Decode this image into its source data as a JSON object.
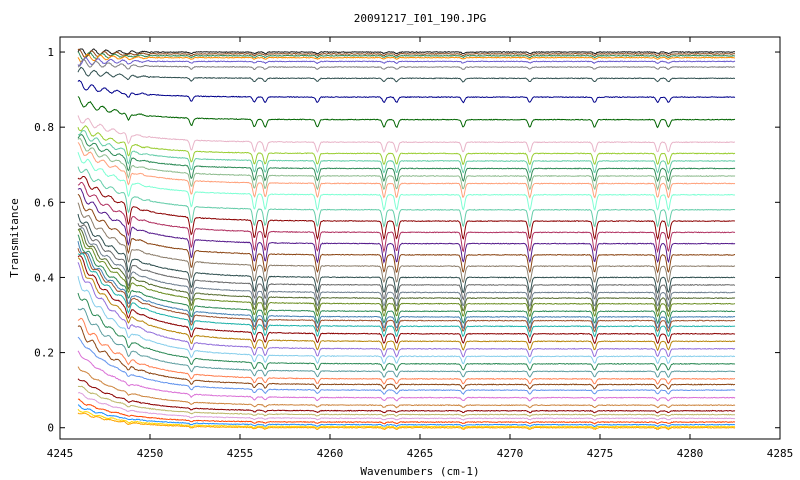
{
  "chart_data": {
    "type": "line",
    "title": "20091217_I01_190.JPG",
    "xlabel": "Wavenumbers (cm-1)",
    "ylabel": "Transmitance",
    "xlim": [
      4245,
      4285
    ],
    "ylim": [
      -0.03,
      1.04
    ],
    "data_x_range": [
      4246,
      4282.5
    ],
    "xticks": [
      4245,
      4250,
      4255,
      4260,
      4265,
      4270,
      4275,
      4280,
      4285
    ],
    "yticks": [
      0,
      0.2,
      0.4,
      0.6,
      0.8,
      1
    ],
    "ytick_labels": [
      "0",
      "0.2",
      "0.4",
      "0.6",
      "0.8",
      "1"
    ],
    "grid": false,
    "legend": "none",
    "absorption_lines_cm1": [
      4248.8,
      4252.3,
      4255.8,
      4256.4,
      4259.3,
      4263.0,
      4263.7,
      4267.4,
      4271.1,
      4274.7,
      4278.2,
      4278.8
    ],
    "series_baselines_at_4282": [
      1.0,
      0.995,
      0.99,
      0.985,
      0.975,
      0.96,
      0.93,
      0.88,
      0.82,
      0.76,
      0.73,
      0.71,
      0.69,
      0.67,
      0.65,
      0.62,
      0.58,
      0.55,
      0.52,
      0.49,
      0.46,
      0.43,
      0.4,
      0.38,
      0.36,
      0.345,
      0.33,
      0.31,
      0.295,
      0.285,
      0.27,
      0.25,
      0.23,
      0.21,
      0.19,
      0.17,
      0.15,
      0.13,
      0.115,
      0.1,
      0.08,
      0.06,
      0.045,
      0.035,
      0.025,
      0.015,
      0.008,
      0.003,
      0.0
    ],
    "colors": [
      "#1a1a1a",
      "#8b4513",
      "#2e8b57",
      "#ff8c00",
      "#6a5acd",
      "#808080",
      "#2f4f4f",
      "#00008b",
      "#006400",
      "#e8b4c8",
      "#9acd32",
      "#66cdaa",
      "#2e8b57",
      "#8fbc8f",
      "#ffa07a",
      "#7fffd4",
      "#66cdaa",
      "#8b0000",
      "#b03060",
      "#551a8b",
      "#8b4513",
      "#8b7d6b",
      "#2f4f4f",
      "#696969",
      "#708090",
      "#556b2f",
      "#6b8e23",
      "#2e8b57",
      "#4682b4",
      "#a0522d",
      "#20b2aa",
      "#8b0000",
      "#b8860b",
      "#9370db",
      "#87ceeb",
      "#2e8b57",
      "#5f9ea0",
      "#ff7f50",
      "#8b4513",
      "#6495ed",
      "#da70d6",
      "#cd853f",
      "#8b0000",
      "#bdb76b",
      "#dda0dd",
      "#ff4500",
      "#1e90ff",
      "#ffd700",
      "#ffa500"
    ]
  }
}
